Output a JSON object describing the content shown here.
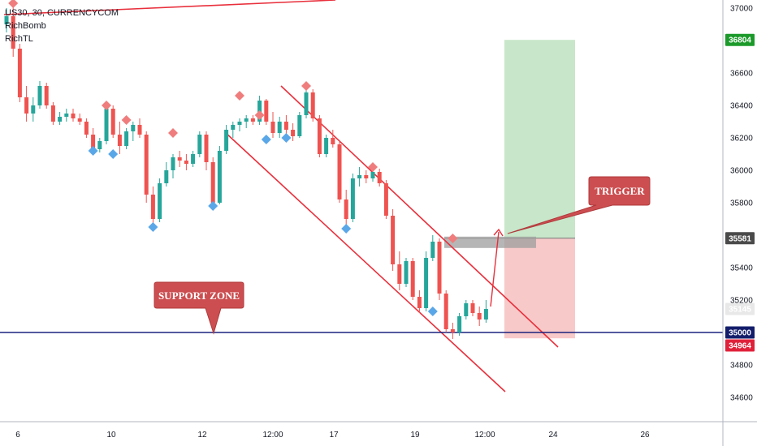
{
  "legend": {
    "symbol": "US30, 30, CURRENCYCOM",
    "indicators": [
      "RichBomb",
      "RichTL"
    ]
  },
  "colors": {
    "up": "#26a69a",
    "down": "#ef5350",
    "channel": "#e8303c",
    "support": "#1a237e",
    "target_zone": "#c8e6c9",
    "stop_zone": "#f8c9c9",
    "callout": "#cc4e50",
    "signal_sell": "#f07d7d",
    "signal_buy": "#5aa7e8",
    "trigger_bar": "#9e9e9e",
    "badge_green": "#1b9a2a",
    "badge_gray": "#4a4a4a",
    "badge_navy": "#131d6b",
    "badge_red": "#e0203a"
  },
  "chart_data": {
    "type": "candlestick",
    "ylim": [
      34500,
      37050
    ],
    "y_ticks": [
      34600,
      34800,
      35000,
      35200,
      35400,
      35600,
      35800,
      36000,
      36200,
      36400,
      36600,
      36800,
      37000
    ],
    "x_ticks": [
      "6",
      "10",
      "12",
      "12:00",
      "17",
      "19",
      "12:00",
      "24",
      "26"
    ],
    "series": [
      {
        "values": [
          [
            36900,
            37000,
            36850,
            36950
          ],
          [
            36950,
            37050,
            36700,
            36750
          ],
          [
            36750,
            36780,
            36420,
            36450
          ],
          [
            36450,
            36520,
            36300,
            36350
          ],
          [
            36350,
            36450,
            36300,
            36400
          ],
          [
            36400,
            36550,
            36380,
            36520
          ],
          [
            36520,
            36540,
            36380,
            36400
          ],
          [
            36400,
            36420,
            36280,
            36300
          ],
          [
            36300,
            36360,
            36280,
            36330
          ],
          [
            36330,
            36380,
            36300,
            36350
          ],
          [
            36350,
            36380,
            36300,
            36320
          ],
          [
            36320,
            36350,
            36280,
            36300
          ],
          [
            36300,
            36320,
            36200,
            36220
          ],
          [
            36220,
            36260,
            36100,
            36130
          ],
          [
            36130,
            36200,
            36110,
            36180
          ],
          [
            36180,
            36420,
            36160,
            36380
          ],
          [
            36380,
            36400,
            36200,
            36220
          ],
          [
            36220,
            36300,
            36100,
            36150
          ],
          [
            36150,
            36260,
            36130,
            36240
          ],
          [
            36240,
            36300,
            36180,
            36280
          ],
          [
            36280,
            36320,
            36200,
            36220
          ],
          [
            36220,
            36240,
            35800,
            35850
          ],
          [
            35850,
            35900,
            35650,
            35700
          ],
          [
            35700,
            35950,
            35680,
            35920
          ],
          [
            35920,
            36050,
            35900,
            36000
          ],
          [
            36000,
            36100,
            35950,
            36080
          ],
          [
            36080,
            36120,
            36020,
            36060
          ],
          [
            36060,
            36100,
            36000,
            36040
          ],
          [
            36040,
            36120,
            36020,
            36100
          ],
          [
            36100,
            36240,
            36080,
            36220
          ],
          [
            36220,
            36240,
            36000,
            36050
          ],
          [
            36050,
            36080,
            35780,
            35800
          ],
          [
            35800,
            36150,
            35790,
            36120
          ],
          [
            36120,
            36280,
            36100,
            36250
          ],
          [
            36250,
            36300,
            36200,
            36280
          ],
          [
            36280,
            36320,
            36240,
            36300
          ],
          [
            36300,
            36340,
            36260,
            36320
          ],
          [
            36320,
            36340,
            36280,
            36300
          ],
          [
            36300,
            36460,
            36280,
            36430
          ],
          [
            36430,
            36440,
            36280,
            36300
          ],
          [
            36300,
            36360,
            36200,
            36230
          ],
          [
            36230,
            36330,
            36200,
            36300
          ],
          [
            36300,
            36340,
            36220,
            36250
          ],
          [
            36250,
            36290,
            36180,
            36210
          ],
          [
            36210,
            36360,
            36200,
            36340
          ],
          [
            36340,
            36520,
            36320,
            36480
          ],
          [
            36480,
            36500,
            36300,
            36320
          ],
          [
            36320,
            36340,
            36080,
            36100
          ],
          [
            36100,
            36220,
            36080,
            36200
          ],
          [
            36200,
            36250,
            36140,
            36160
          ],
          [
            36160,
            36180,
            35800,
            35820
          ],
          [
            35820,
            35880,
            35660,
            35700
          ],
          [
            35700,
            35980,
            35680,
            35950
          ],
          [
            35950,
            36020,
            35900,
            35970
          ],
          [
            35970,
            36000,
            35920,
            35950
          ],
          [
            35950,
            36010,
            35930,
            35990
          ],
          [
            35990,
            36010,
            35900,
            35920
          ],
          [
            35920,
            35940,
            35700,
            35720
          ],
          [
            35720,
            35760,
            35380,
            35420
          ],
          [
            35420,
            35500,
            35260,
            35300
          ],
          [
            35300,
            35460,
            35280,
            35440
          ],
          [
            35440,
            35460,
            35200,
            35220
          ],
          [
            35220,
            35260,
            35120,
            35150
          ],
          [
            35150,
            35500,
            35130,
            35460
          ],
          [
            35460,
            35600,
            35440,
            35560
          ],
          [
            35560,
            35580,
            35200,
            35240
          ],
          [
            35240,
            35260,
            35000,
            35020
          ],
          [
            35020,
            35060,
            34960,
            35000
          ],
          [
            35000,
            35120,
            34980,
            35100
          ],
          [
            35100,
            35200,
            35080,
            35180
          ],
          [
            35180,
            35200,
            35100,
            35120
          ],
          [
            35120,
            35160,
            35040,
            35080
          ],
          [
            35080,
            35200,
            35060,
            35145
          ]
        ]
      }
    ],
    "signals": [
      {
        "bar": 1,
        "dir": "sell",
        "price": 37030
      },
      {
        "bar": 13,
        "dir": "buy",
        "price": 36120
      },
      {
        "bar": 15,
        "dir": "sell",
        "price": 36400
      },
      {
        "bar": 16,
        "dir": "buy",
        "price": 36100
      },
      {
        "bar": 18,
        "dir": "sell",
        "price": 36310
      },
      {
        "bar": 22,
        "dir": "buy",
        "price": 35650
      },
      {
        "bar": 25,
        "dir": "sell",
        "price": 36230
      },
      {
        "bar": 31,
        "dir": "buy",
        "price": 35780
      },
      {
        "bar": 35,
        "dir": "sell",
        "price": 36460
      },
      {
        "bar": 38,
        "dir": "sell",
        "price": 36340
      },
      {
        "bar": 39,
        "dir": "buy",
        "price": 36190
      },
      {
        "bar": 42,
        "dir": "buy",
        "price": 36200
      },
      {
        "bar": 45,
        "dir": "sell",
        "price": 36520
      },
      {
        "bar": 51,
        "dir": "buy",
        "price": 35640
      },
      {
        "bar": 55,
        "dir": "sell",
        "price": 36020
      },
      {
        "bar": 64,
        "dir": "buy",
        "price": 35130
      },
      {
        "bar": 67,
        "dir": "sell",
        "price": 35580
      }
    ],
    "support_level": 35000,
    "entry": 35581,
    "target": 36804,
    "stop": 34964,
    "last_price": 35145,
    "annotations": [
      {
        "text": "SUPPORT ZONE",
        "points_to": 35000
      },
      {
        "text": "TRIGGER",
        "points_to": 35581
      }
    ]
  },
  "price_labels": {
    "target": "36804",
    "entry": "35581",
    "last": "35145",
    "support": "35000",
    "stop": "34964"
  }
}
